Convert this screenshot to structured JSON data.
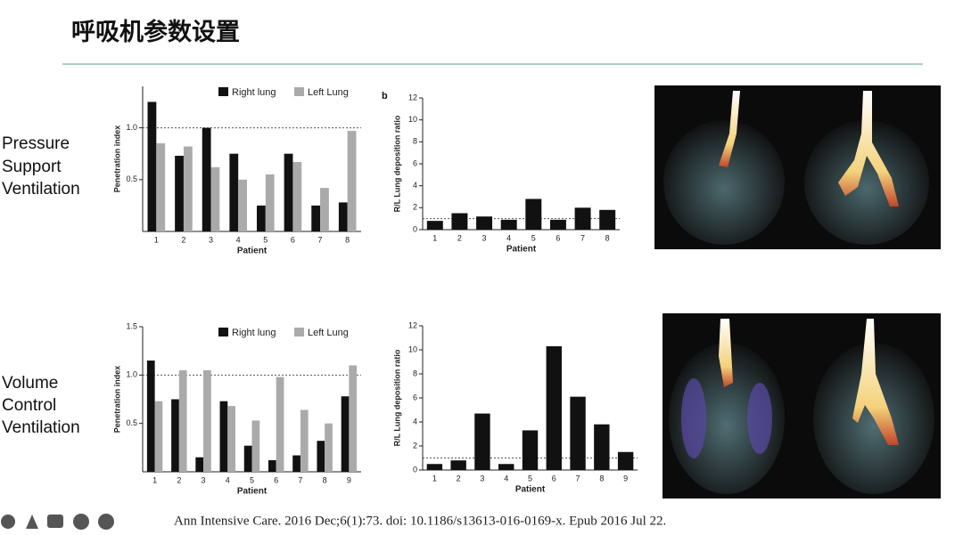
{
  "slide_title": "呼吸机参数设置",
  "row_labels": [
    [
      "Pressure",
      "Support",
      "Ventilation"
    ],
    [
      "Volume",
      "Control",
      "Ventilation"
    ]
  ],
  "citation": "Ann Intensive Care. 2016 Dec;6(1):73. doi: 10.1186/s13613-016-0169-x. Epub 2016 Jul 22.",
  "chart_data": [
    {
      "type": "bar",
      "x_label": "Patient",
      "y_label": "Penetration index",
      "categories": [
        "1",
        "2",
        "3",
        "4",
        "5",
        "6",
        "7",
        "8"
      ],
      "series": [
        {
          "name": "Right lung",
          "color": "#111111",
          "values": [
            1.25,
            0.73,
            1.0,
            0.75,
            0.25,
            0.75,
            0.25,
            0.28
          ]
        },
        {
          "name": "Left Lung",
          "color": "#aaaaaa",
          "values": [
            0.85,
            0.82,
            0.62,
            0.5,
            0.55,
            0.67,
            0.42,
            0.97
          ]
        }
      ],
      "ylim": [
        0,
        1.4
      ],
      "yticks": [
        0.5,
        {
          "value": 1,
          "label": "1.0"
        }
      ],
      "reference_line": 1,
      "legend": "top-right"
    },
    {
      "type": "bar",
      "panel_label": "b",
      "x_label": "Patient",
      "y_label": "R/L Lung deposition ratio",
      "categories": [
        "1",
        "2",
        "3",
        "4",
        "5",
        "6",
        "7",
        "8"
      ],
      "series": [
        {
          "name": null,
          "color": "#111111",
          "values": [
            0.8,
            1.5,
            1.2,
            0.9,
            2.8,
            0.9,
            2.0,
            1.8
          ]
        }
      ],
      "ylim": [
        0,
        12
      ],
      "yticks": [
        0,
        2,
        4,
        6,
        8,
        10,
        12
      ],
      "reference_line": 1
    },
    {
      "type": "bar",
      "x_label": "Patient",
      "y_label": "Penetration index",
      "categories": [
        "1",
        "2",
        "3",
        "4",
        "5",
        "6",
        "7",
        "8",
        "9"
      ],
      "series": [
        {
          "name": "Right lung",
          "color": "#111111",
          "values": [
            1.15,
            0.75,
            0.15,
            0.73,
            0.27,
            0.12,
            0.17,
            0.32,
            0.78
          ]
        },
        {
          "name": "Left Lung",
          "color": "#aaaaaa",
          "values": [
            0.73,
            1.05,
            1.05,
            0.68,
            0.53,
            0.98,
            0.64,
            0.5,
            1.1
          ]
        }
      ],
      "ylim": [
        0,
        1.5
      ],
      "yticks": [
        0.5,
        {
          "value": 1,
          "label": "1.0"
        },
        1.5
      ],
      "reference_line": 1,
      "legend": "top-right"
    },
    {
      "type": "bar",
      "x_label": "Patient",
      "y_label": "R/L Lung deposition ratio",
      "categories": [
        "1",
        "2",
        "3",
        "4",
        "5",
        "6",
        "7",
        "8",
        "9"
      ],
      "series": [
        {
          "name": null,
          "color": "#111111",
          "values": [
            0.5,
            0.8,
            4.7,
            0.5,
            3.3,
            10.3,
            6.1,
            3.8,
            1.5
          ]
        }
      ],
      "ylim": [
        0,
        12
      ],
      "yticks": [
        0,
        2,
        4,
        6,
        8,
        10,
        12
      ],
      "reference_line": 1
    }
  ]
}
